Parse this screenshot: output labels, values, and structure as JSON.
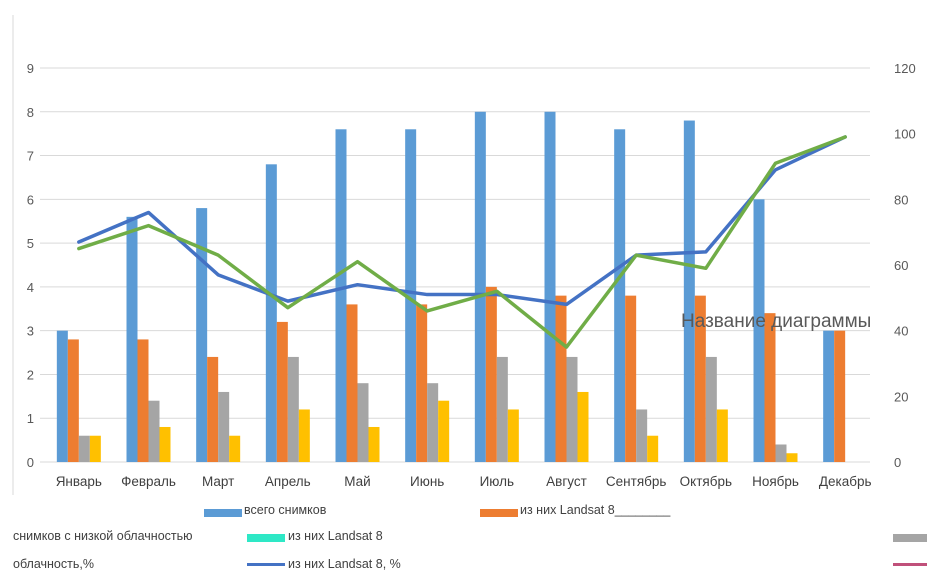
{
  "chart_data": {
    "type": "bar",
    "title": "Название диаграммы",
    "categories": [
      "Январь",
      "Февраль",
      "Март",
      "Апрель",
      "Май",
      "Июнь",
      "Июль",
      "Август",
      "Сентябрь",
      "Октябрь",
      "Ноябрь",
      "Декабрь"
    ],
    "y_left": {
      "ylim": [
        0,
        9
      ],
      "ticks": [
        "0",
        "1",
        "2",
        "3",
        "4",
        "5",
        "6",
        "7",
        "8",
        "9"
      ]
    },
    "y_right": {
      "ylim": [
        0,
        120
      ],
      "ticks": [
        "0",
        "20",
        "40",
        "60",
        "80",
        "100",
        "120"
      ]
    },
    "grid": true,
    "legend_position": "bottom",
    "series": [
      {
        "name": "всего  снимков",
        "kind": "bar",
        "axis": "left",
        "color": "#5B9BD5",
        "values": [
          3.0,
          5.6,
          5.8,
          6.8,
          7.6,
          7.6,
          8.0,
          8.0,
          7.6,
          7.8,
          6.0,
          3.0
        ]
      },
      {
        "name": "из них Landsat 8",
        "kind": "bar",
        "axis": "left",
        "color": "#ED7D31",
        "values": [
          2.8,
          2.8,
          2.4,
          3.2,
          3.6,
          3.6,
          4.0,
          3.8,
          3.8,
          3.8,
          3.4,
          3.0
        ]
      },
      {
        "name": "снимков с низкой облачностью",
        "kind": "bar",
        "axis": "left",
        "color": "#A5A5A5",
        "values": [
          0.6,
          1.4,
          1.6,
          2.4,
          1.8,
          1.8,
          2.4,
          2.4,
          1.2,
          2.4,
          0.4,
          0
        ]
      },
      {
        "name": "",
        "kind": "bar",
        "axis": "left",
        "color": "#FFC000",
        "values": [
          0.6,
          0.8,
          0.6,
          1.2,
          0.8,
          1.4,
          1.2,
          1.6,
          0.6,
          1.2,
          0.2,
          0
        ]
      },
      {
        "name": "из них Landsat 8, %",
        "kind": "line",
        "axis": "right",
        "color": "#4472C4",
        "values": [
          67,
          76,
          57,
          49,
          54,
          51,
          51,
          48,
          63,
          64,
          89,
          99
        ]
      },
      {
        "name": "облачность,%",
        "kind": "line",
        "axis": "right",
        "color": "#70AD47",
        "values": [
          65,
          72,
          63,
          47,
          61,
          46,
          52,
          35,
          63,
          59,
          91,
          99
        ]
      }
    ]
  },
  "legend": {
    "row1": {
      "item1": "всего  снимков",
      "item2": "из них Landsat 8________"
    },
    "row2": {
      "item1": "снимков с низкой облачностью",
      "item2": "из них Landsat 8"
    },
    "row3": {
      "item1": "облачность,%",
      "item2": "из них Landsat 8, %"
    },
    "colors": {
      "blue": "#5B9BD5",
      "orange": "#ED7D31",
      "teal": "#2EE8C6",
      "gray": "#A5A5A5",
      "dark_blue": "#4472C4",
      "magenta": "#C0507A"
    }
  }
}
